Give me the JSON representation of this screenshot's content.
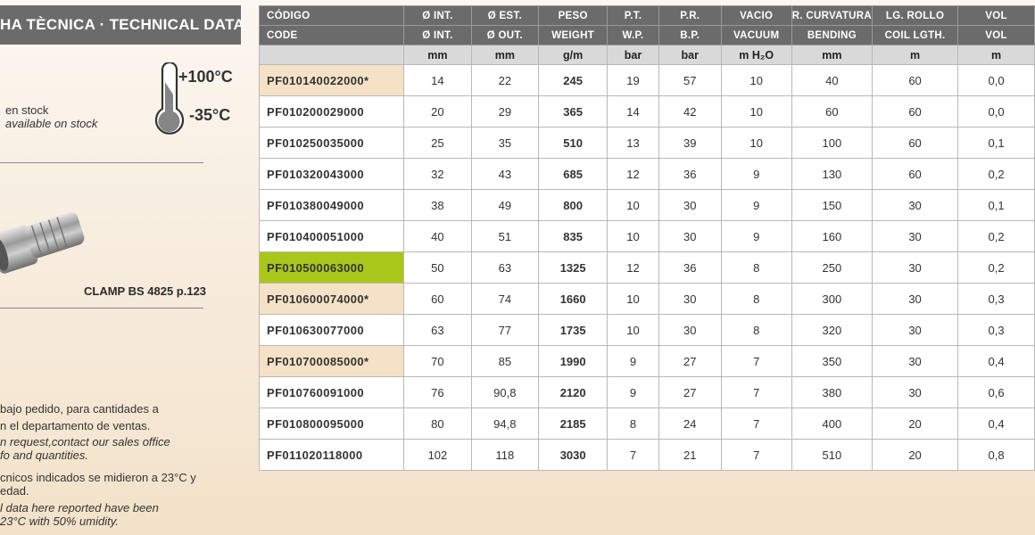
{
  "header": {
    "title": "HA TÈCNICA · TECHNICAL DATA"
  },
  "temperature": {
    "max": "+100°C",
    "min": "-35°C",
    "icon": "thermometer-icon"
  },
  "legend": {
    "stock_es": "en stock",
    "stock_en": "available on stock",
    "highlight_color": "#f5e2c6",
    "green_color": "#a9c71b"
  },
  "fitting": {
    "label": "CLAMP BS 4825 p.123"
  },
  "notes": {
    "order_es_1": "bajo pedido, para cantidades a",
    "order_es_2": "n el departamento de ventas.",
    "order_en_1": "n request,contact our sales office",
    "order_en_2": "fo and quantities.",
    "tech_es_1": "cnicos indicados se midieron a 23°C y",
    "tech_es_2": "edad.",
    "tech_en_1": "l data here reported have been",
    "tech_en_2": "23°C with 50% umidity."
  },
  "table": {
    "header_es": [
      "CÓDIGO",
      "Ø INT.",
      "Ø EST.",
      "PESO",
      "P.T.",
      "P.R.",
      "VACIO",
      "R. CURVATURA",
      "LG. ROLLO",
      "VOL"
    ],
    "header_en": [
      "CODE",
      "Ø INT.",
      "Ø OUT.",
      "WEIGHT",
      "W.P.",
      "B.P.",
      "VACUUM",
      "BENDING",
      "COIL LGTH.",
      "VOL"
    ],
    "units": [
      "",
      "mm",
      "mm",
      "g/m",
      "bar",
      "bar",
      "m H₂O",
      "mm",
      "m",
      "m"
    ],
    "rows": [
      {
        "cells": [
          "PF010140022000*",
          "14",
          "22",
          "245",
          "19",
          "57",
          "10",
          "40",
          "60",
          "0,0"
        ],
        "highlight": "beige"
      },
      {
        "cells": [
          "PF010200029000",
          "20",
          "29",
          "365",
          "14",
          "42",
          "10",
          "60",
          "60",
          "0,0"
        ],
        "highlight": ""
      },
      {
        "cells": [
          "PF010250035000",
          "25",
          "35",
          "510",
          "13",
          "39",
          "10",
          "100",
          "60",
          "0,1"
        ],
        "highlight": ""
      },
      {
        "cells": [
          "PF010320043000",
          "32",
          "43",
          "685",
          "12",
          "36",
          "9",
          "130",
          "60",
          "0,2"
        ],
        "highlight": ""
      },
      {
        "cells": [
          "PF010380049000",
          "38",
          "49",
          "800",
          "10",
          "30",
          "9",
          "150",
          "30",
          "0,1"
        ],
        "highlight": ""
      },
      {
        "cells": [
          "PF010400051000",
          "40",
          "51",
          "835",
          "10",
          "30",
          "9",
          "160",
          "30",
          "0,2"
        ],
        "highlight": ""
      },
      {
        "cells": [
          "PF010500063000",
          "50",
          "63",
          "1325",
          "12",
          "36",
          "8",
          "250",
          "30",
          "0,2"
        ],
        "highlight": "green"
      },
      {
        "cells": [
          "PF010600074000*",
          "60",
          "74",
          "1660",
          "10",
          "30",
          "8",
          "300",
          "30",
          "0,3"
        ],
        "highlight": "beige"
      },
      {
        "cells": [
          "PF010630077000",
          "63",
          "77",
          "1735",
          "10",
          "30",
          "8",
          "320",
          "30",
          "0,3"
        ],
        "highlight": ""
      },
      {
        "cells": [
          "PF010700085000*",
          "70",
          "85",
          "1990",
          "9",
          "27",
          "7",
          "350",
          "30",
          "0,4"
        ],
        "highlight": "beige"
      },
      {
        "cells": [
          "PF010760091000",
          "76",
          "90,8",
          "2120",
          "9",
          "27",
          "7",
          "380",
          "30",
          "0,6"
        ],
        "highlight": ""
      },
      {
        "cells": [
          "PF010800095000",
          "80",
          "94,8",
          "2185",
          "8",
          "24",
          "7",
          "400",
          "20",
          "0,4"
        ],
        "highlight": ""
      },
      {
        "cells": [
          "PF011020118000",
          "102",
          "118",
          "3030",
          "7",
          "21",
          "7",
          "510",
          "20",
          "0,8"
        ],
        "highlight": ""
      }
    ]
  }
}
